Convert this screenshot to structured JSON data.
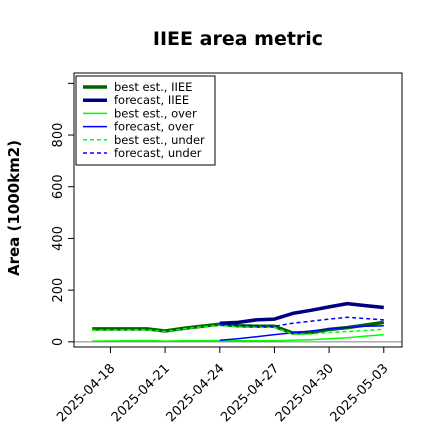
{
  "chart_data": {
    "type": "line",
    "title": "IIEE area metric",
    "xlabel": "",
    "ylabel": "Area (1000km2)",
    "xlim": [
      "2025-04-16",
      "2025-05-04"
    ],
    "ylim": [
      -20,
      1040
    ],
    "yticks": [
      0,
      200,
      400,
      600,
      800
    ],
    "xticks": [
      "2025-04-18",
      "2025-04-21",
      "2025-04-24",
      "2025-04-27",
      "2025-04-30",
      "2025-05-03"
    ],
    "highlighted_xtick": "2025-04-24",
    "highlight_color": "#228b22",
    "grid": false,
    "legend_position": "top-left",
    "series": [
      {
        "name": "best est., IIEE",
        "color": "#006400",
        "style": "solid",
        "width": "thick",
        "x": [
          "2025-04-17",
          "2025-04-19",
          "2025-04-20",
          "2025-04-21",
          "2025-04-22",
          "2025-04-23",
          "2025-04-24",
          "2025-04-25",
          "2025-04-26",
          "2025-04-27",
          "2025-04-28",
          "2025-04-29",
          "2025-04-30",
          "2025-05-01",
          "2025-05-02",
          "2025-05-03"
        ],
        "y": [
          50,
          50,
          50,
          42,
          52,
          60,
          68,
          62,
          60,
          60,
          34,
          36,
          48,
          55,
          65,
          75
        ]
      },
      {
        "name": "forecast, IIEE",
        "color": "#000080",
        "style": "solid",
        "width": "thick",
        "x": [
          "2025-04-24",
          "2025-04-25",
          "2025-04-26",
          "2025-04-27",
          "2025-04-28",
          "2025-04-29",
          "2025-04-30",
          "2025-05-01",
          "2025-05-02",
          "2025-05-03"
        ],
        "y": [
          72,
          75,
          85,
          88,
          110,
          122,
          135,
          148,
          140,
          133
        ]
      },
      {
        "name": "best est., over",
        "color": "#00ff00",
        "style": "solid",
        "width": "thin",
        "x": [
          "2025-04-17",
          "2025-04-19",
          "2025-04-20",
          "2025-04-21",
          "2025-04-22",
          "2025-04-23",
          "2025-04-24",
          "2025-04-25",
          "2025-04-26",
          "2025-04-27",
          "2025-04-28",
          "2025-04-29",
          "2025-04-30",
          "2025-05-01",
          "2025-05-02",
          "2025-05-03"
        ],
        "y": [
          3,
          4,
          5,
          3,
          4,
          4,
          5,
          4,
          4,
          4,
          6,
          8,
          12,
          16,
          22,
          28
        ]
      },
      {
        "name": "forecast, over",
        "color": "#0000ff",
        "style": "solid",
        "width": "thin",
        "x": [
          "2025-04-24",
          "2025-04-25",
          "2025-04-26",
          "2025-04-27",
          "2025-04-28",
          "2025-04-29",
          "2025-04-30",
          "2025-05-01",
          "2025-05-02",
          "2025-05-03"
        ],
        "y": [
          6,
          12,
          20,
          28,
          35,
          42,
          50,
          56,
          60,
          62
        ]
      },
      {
        "name": "best est., under",
        "color": "#00ff00",
        "style": "dashed",
        "width": "thin",
        "x": [
          "2025-04-17",
          "2025-04-19",
          "2025-04-20",
          "2025-04-21",
          "2025-04-22",
          "2025-04-23",
          "2025-04-24",
          "2025-04-25",
          "2025-04-26",
          "2025-04-27",
          "2025-04-28",
          "2025-04-29",
          "2025-04-30",
          "2025-05-01",
          "2025-05-02",
          "2025-05-03"
        ],
        "y": [
          45,
          46,
          46,
          40,
          50,
          58,
          64,
          58,
          56,
          56,
          30,
          30,
          36,
          40,
          44,
          48
        ]
      },
      {
        "name": "forecast, under",
        "color": "#0000ff",
        "style": "dashed",
        "width": "thin",
        "x": [
          "2025-04-24",
          "2025-04-25",
          "2025-04-26",
          "2025-04-27",
          "2025-04-28",
          "2025-04-29",
          "2025-04-30",
          "2025-05-01",
          "2025-05-02",
          "2025-05-03"
        ],
        "y": [
          66,
          64,
          62,
          60,
          72,
          80,
          88,
          95,
          90,
          85
        ]
      }
    ],
    "reference_line": {
      "y": 0,
      "color": "#808080"
    }
  }
}
